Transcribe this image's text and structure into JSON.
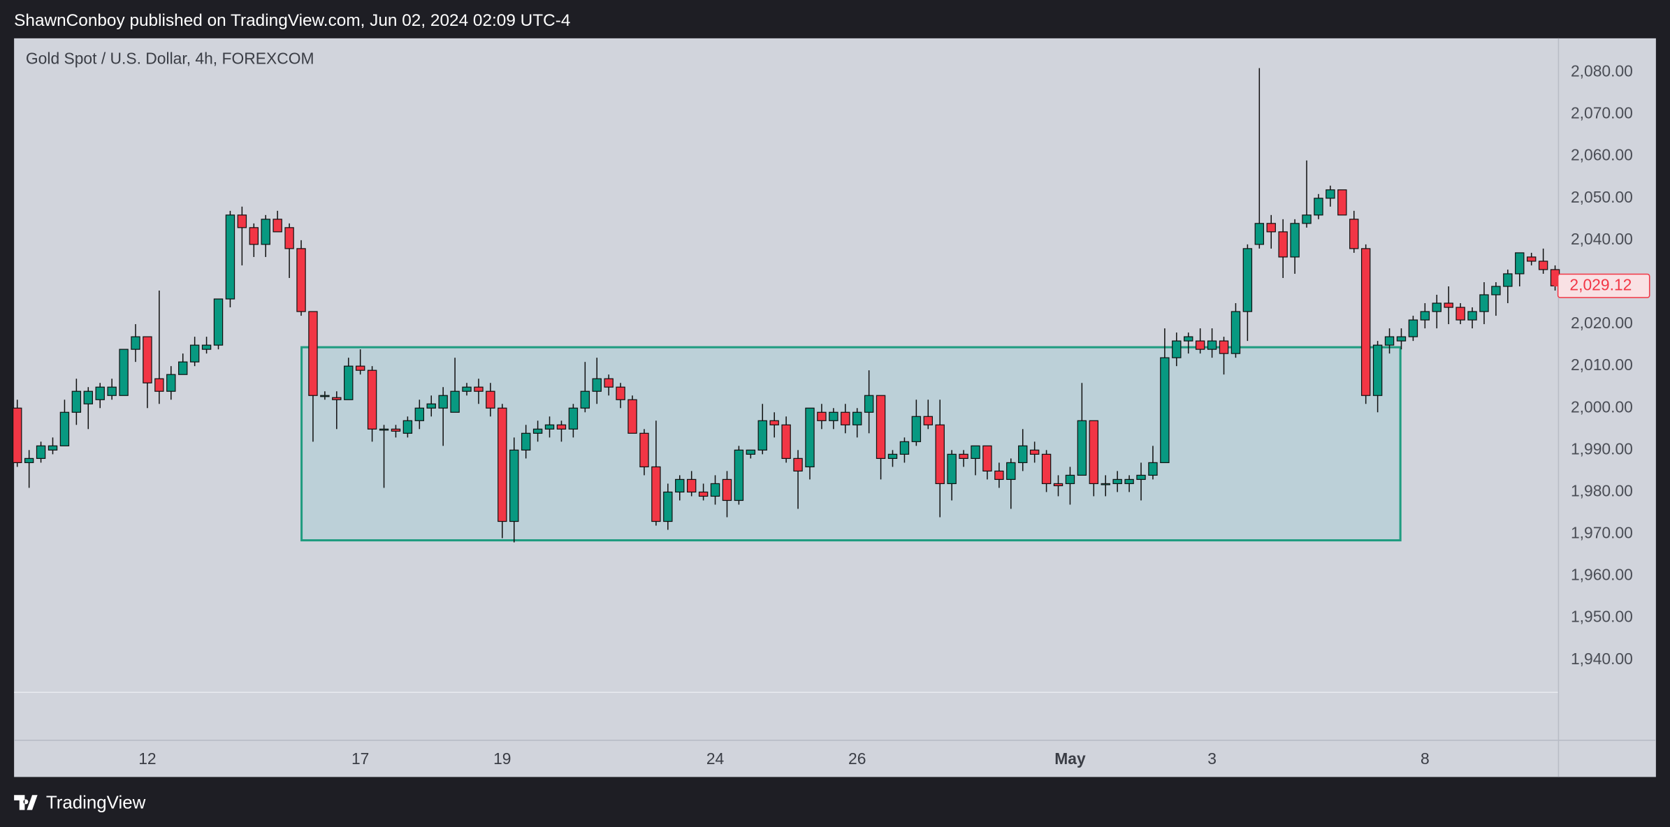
{
  "header": "ShawnConboy published on TradingView.com, Jun 02, 2024 02:09 UTC-4",
  "footer_brand": "TradingView",
  "chart_data": {
    "type": "candlestick",
    "title": "Gold Spot / U.S. Dollar, 4h, FOREXCOM",
    "up_color": "#089981",
    "down_color": "#f23645",
    "box": {
      "high": 2014.5,
      "low": 1968.5,
      "color": "#1f9c80"
    },
    "grid": false,
    "ylim": [
      1932.4,
      2088.1
    ],
    "yticks": [
      {
        "value": 1940,
        "label": "1,940.00"
      },
      {
        "value": 1950,
        "label": "1,950.00"
      },
      {
        "value": 1960,
        "label": "1,960.00"
      },
      {
        "value": 1970,
        "label": "1,970.00"
      },
      {
        "value": 1980,
        "label": "1,980.00"
      },
      {
        "value": 1990,
        "label": "1,990.00"
      },
      {
        "value": 2000,
        "label": "2,000.00"
      },
      {
        "value": 2010,
        "label": "2,010.00"
      },
      {
        "value": 2020,
        "label": "2,020.00"
      },
      {
        "value": 2030,
        "label": "2,030.00"
      },
      {
        "value": 2040,
        "label": "2,040.00"
      },
      {
        "value": 2050,
        "label": "2,050.00"
      },
      {
        "value": 2060,
        "label": "2,060.00"
      },
      {
        "value": 2070,
        "label": "2,070.00"
      },
      {
        "value": 2080,
        "label": "2,080.00"
      }
    ],
    "last_price": {
      "value": 2029.12,
      "label": "2,029.12"
    },
    "categories": [
      null,
      null,
      null,
      null,
      null,
      null,
      null,
      null,
      null,
      null,
      null,
      "12",
      null,
      null,
      null,
      null,
      null,
      null,
      null,
      null,
      null,
      null,
      null,
      null,
      null,
      null,
      null,
      null,
      null,
      "17",
      null,
      null,
      null,
      null,
      null,
      null,
      null,
      null,
      null,
      null,
      null,
      "19",
      null,
      null,
      null,
      null,
      null,
      null,
      null,
      null,
      null,
      null,
      null,
      null,
      null,
      null,
      null,
      null,
      null,
      "24",
      null,
      null,
      null,
      null,
      null,
      null,
      null,
      null,
      null,
      null,
      null,
      "26",
      null,
      null,
      null,
      null,
      null,
      null,
      null,
      null,
      null,
      null,
      null,
      null,
      null,
      null,
      null,
      null,
      null,
      "May",
      null,
      null,
      null,
      null,
      null,
      null,
      null,
      null,
      null,
      null,
      null,
      "3",
      null,
      null,
      null,
      null,
      null,
      null,
      null,
      null,
      null,
      null,
      null,
      null,
      null,
      null,
      null,
      null,
      null,
      "8",
      null,
      null,
      null,
      null,
      null,
      null,
      null,
      null,
      null,
      null,
      null
    ],
    "open": [
      2000,
      1987,
      1988,
      1990,
      1991,
      1999,
      2001,
      2002,
      2003,
      2003,
      2014,
      2017,
      2007,
      2004,
      2008,
      2011,
      2014,
      2015,
      2026,
      2046,
      2043,
      2039,
      2045,
      2043,
      2038,
      2023,
      2003,
      2002.5,
      2002,
      2010,
      2009,
      1995,
      1995,
      1994,
      1997,
      2000,
      2000,
      1999,
      2004,
      2005,
      2004,
      2000,
      1973,
      1990,
      1994,
      1995,
      1996,
      1995,
      2000,
      2004,
      2007,
      2005,
      2002,
      1994,
      1986,
      1973,
      1980,
      1983,
      1980,
      1979,
      1983,
      1978,
      1989,
      1990,
      1997,
      1996,
      1988,
      1986,
      1999,
      1997,
      1999,
      1996,
      1999,
      2003,
      1988,
      1989,
      1992,
      1998,
      1996,
      1982,
      1989,
      1988,
      1991,
      1985,
      1983,
      1987,
      1990,
      1989,
      1982,
      1982,
      1984,
      1997,
      1982,
      1982,
      1982,
      1983,
      1984,
      1987,
      2012,
      2016,
      2016,
      2014,
      2016,
      2013,
      2023,
      2039,
      2044,
      2042,
      2036,
      2044,
      2046,
      2050,
      2052,
      2045,
      2038,
      2003,
      2015,
      2016,
      2017,
      2021,
      2023,
      2025,
      2024,
      2021,
      2023,
      2027,
      2029,
      2032,
      2036,
      2035,
      2033
    ],
    "high": [
      2002,
      1990,
      1992,
      1993,
      2002,
      2007,
      2005,
      2006,
      2007,
      2014,
      2020,
      2017,
      2028,
      2010,
      2013,
      2017,
      2017,
      2026,
      2047,
      2048,
      2044,
      2046,
      2047,
      2044,
      2040,
      2023,
      2004,
      2004,
      2012,
      2014,
      2010,
      1996,
      1996,
      1998,
      2002,
      2003,
      2005,
      2012,
      2006,
      2007,
      2006,
      2001,
      1993,
      1996,
      1997,
      1998,
      1997,
      2001,
      2011,
      2012,
      2008,
      2006,
      2003,
      1995,
      1997,
      1982,
      1984,
      1985,
      1982,
      1984,
      1985,
      1991,
      1990,
      2001,
      1999,
      1998,
      1990,
      2000,
      2001,
      2000,
      2001,
      2000,
      2009,
      2003,
      1990,
      1993,
      2002,
      2002,
      2002,
      1990,
      1990,
      1991,
      1991,
      1987,
      1988,
      1995,
      1992,
      1990,
      1984,
      1986,
      2006,
      1997,
      1984,
      1985,
      1984,
      1987,
      1991,
      2019,
      2018,
      2018,
      2019,
      2019,
      2017,
      2025,
      2039,
      2081,
      2046,
      2045,
      2045,
      2059,
      2051,
      2053,
      2052,
      2047,
      2039,
      2016,
      2019,
      2019,
      2022,
      2025,
      2027,
      2029,
      2025,
      2024,
      2030,
      2030,
      2033,
      2037,
      2037,
      2038,
      2034
    ],
    "low": [
      1986,
      1981,
      1987,
      1989,
      1991,
      1996,
      1995,
      2000,
      2002,
      2003,
      2011,
      2000,
      2001,
      2002,
      2008,
      2010,
      2013,
      2014,
      2024,
      2034,
      2036,
      2036,
      2042,
      2031,
      2022,
      1992,
      2002,
      1995,
      2002,
      2008,
      1992,
      1981,
      1993,
      1993,
      1995,
      1998,
      1991,
      1999,
      2003,
      2001,
      1998,
      1969,
      1968,
      1988,
      1992,
      1993,
      1992,
      1993,
      1999,
      2001,
      2003,
      2000,
      1994,
      1984,
      1972,
      1971,
      1978,
      1979,
      1978,
      1977,
      1974,
      1977,
      1988,
      1989,
      1993,
      1987,
      1976,
      1983,
      1995,
      1995,
      1994,
      1993,
      1994,
      1983,
      1986,
      1987,
      1991,
      1995,
      1974,
      1978,
      1986,
      1984,
      1983,
      1981,
      1976,
      1985,
      1987,
      1980,
      1979,
      1977,
      1984,
      1979,
      1979,
      1980,
      1980,
      1978,
      1983,
      1987,
      2010,
      2013,
      2013,
      2012,
      2008,
      2012,
      2016,
      2038,
      2038,
      2031,
      2032,
      2043,
      2045,
      2048,
      2046,
      2037,
      2001,
      1999,
      2013,
      2014,
      2016,
      2019,
      2019,
      2020,
      2020,
      2019,
      2020,
      2022,
      2025,
      2029,
      2034,
      2032,
      2028
    ],
    "close": [
      1987,
      1988,
      1991,
      1991,
      1999,
      2004,
      2004,
      2005,
      2005,
      2014,
      2017,
      2006,
      2004,
      2008,
      2011,
      2015,
      2015,
      2026,
      2046,
      2043,
      2039,
      2045,
      2042,
      2038,
      2023,
      2003,
      2003,
      2002,
      2010,
      2009,
      1995,
      1995,
      1994.5,
      1997,
      2000,
      2001,
      2003,
      2004,
      2005,
      2004,
      2000,
      1973,
      1990,
      1994,
      1995,
      1996,
      1995,
      2000,
      2004,
      2007,
      2005,
      2002,
      1994,
      1986,
      1973,
      1980,
      1983,
      1980,
      1979,
      1982,
      1978,
      1990,
      1990,
      1997,
      1996,
      1988,
      1985,
      2000,
      1997,
      1999,
      1996,
      1999,
      2003,
      1988,
      1989,
      1992,
      1998,
      1996,
      1982,
      1989,
      1988,
      1991,
      1985,
      1983,
      1987,
      1991,
      1989,
      1982,
      1981.5,
      1984,
      1997,
      1982,
      1982,
      1983,
      1983,
      1984,
      1987,
      2012,
      2016,
      2017,
      2014,
      2016,
      2013,
      2023,
      2038,
      2044,
      2042,
      2036,
      2044,
      2046,
      2050,
      2052,
      2046,
      2038,
      2003,
      2015,
      2017,
      2017,
      2021,
      2023,
      2025,
      2024,
      2021,
      2023,
      2027,
      2029,
      2032,
      2037,
      2035,
      2033,
      2029.12
    ]
  }
}
